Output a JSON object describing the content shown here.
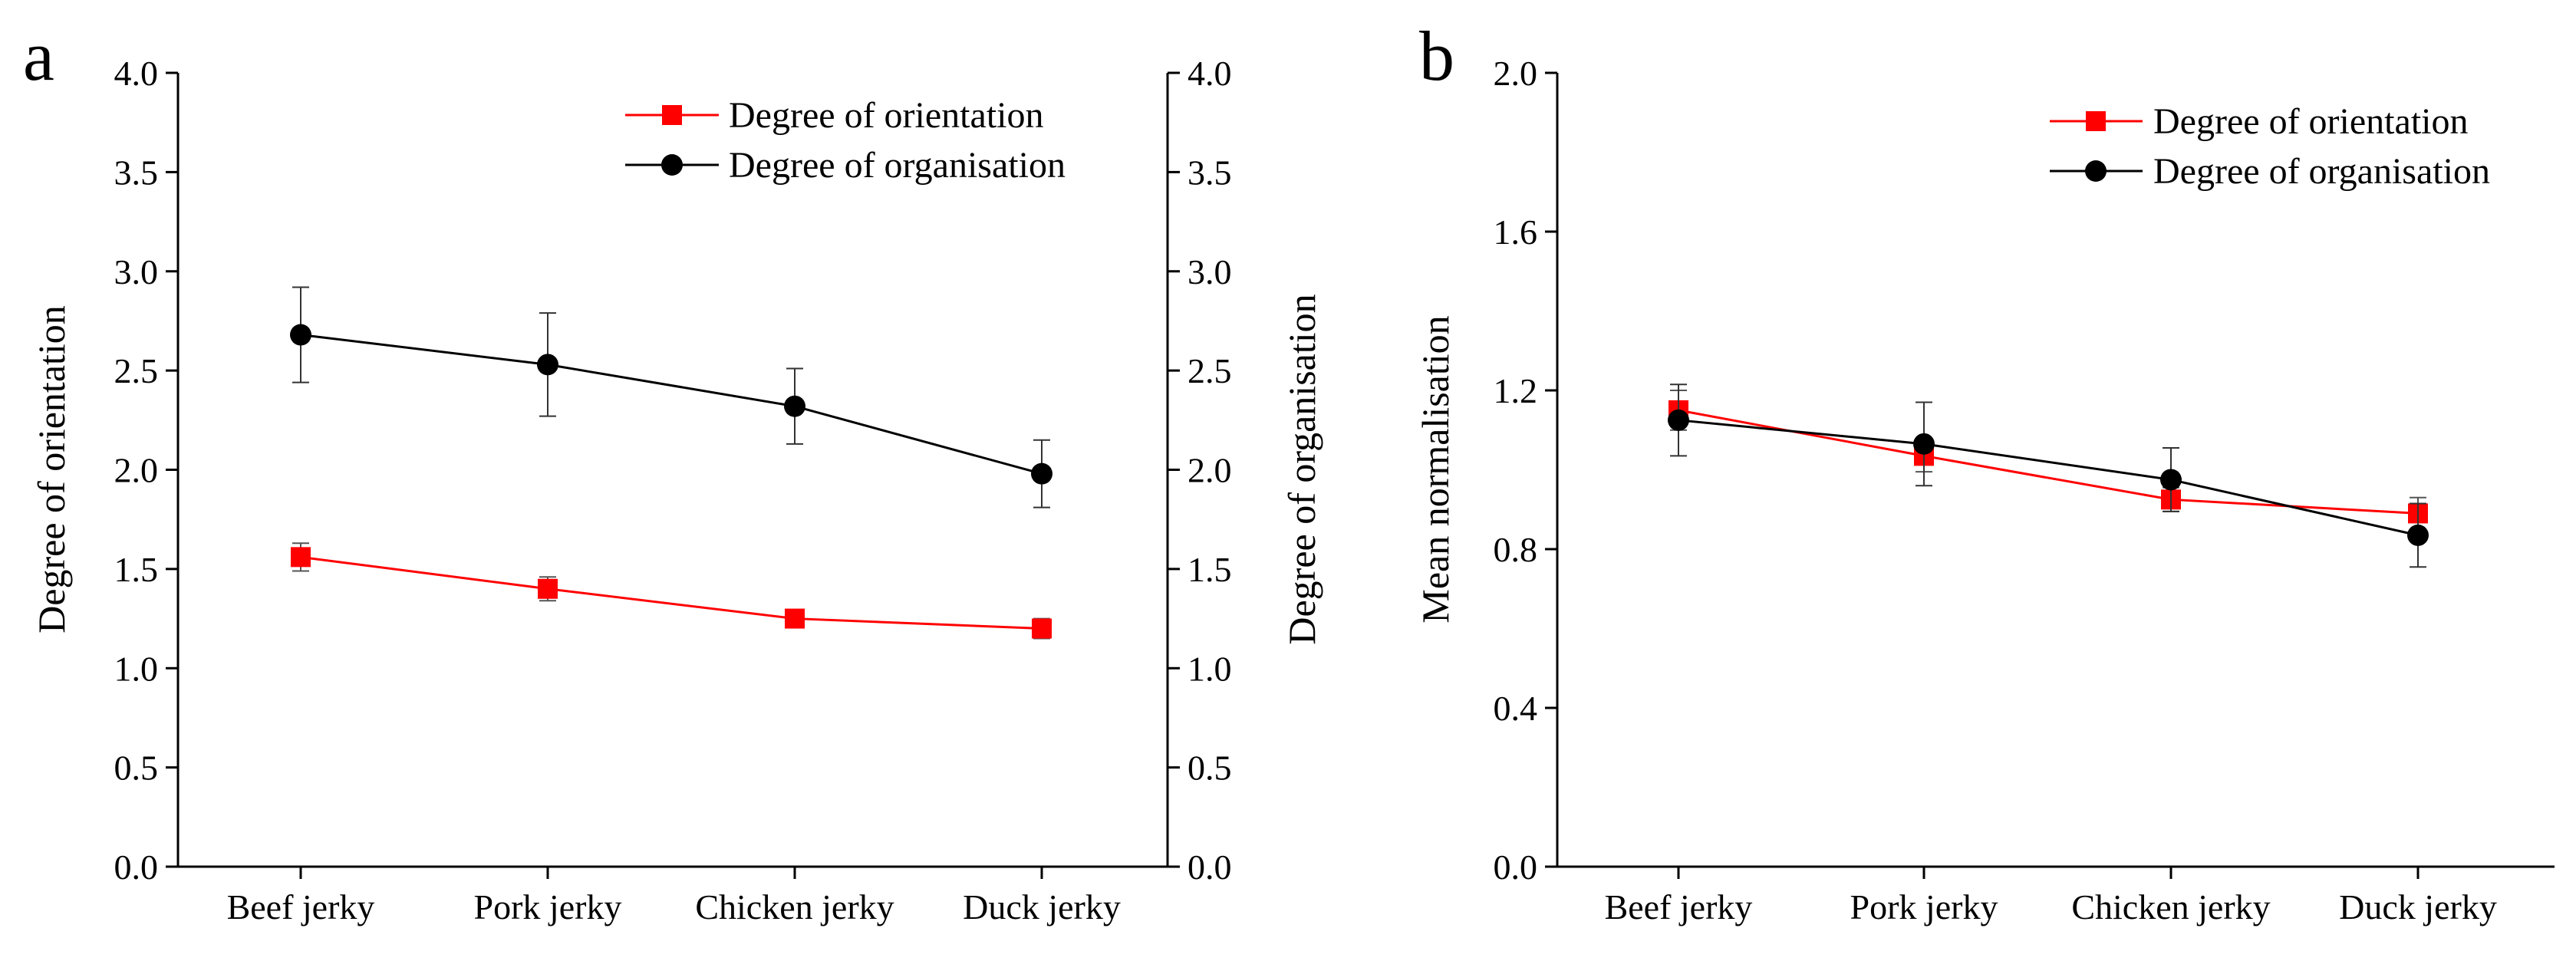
{
  "chart_data": [
    {
      "panel_label": "a",
      "type": "line",
      "categories": [
        "Beef jerky",
        "Pork jerky",
        "Chicken jerky",
        "Duck jerky"
      ],
      "ylabel": "Degree of orientation",
      "y2label": "Degree of organisation",
      "ylim": [
        0.0,
        4.0
      ],
      "y2lim": [
        0.0,
        4.0
      ],
      "yticks": [
        "0.0",
        "0.5",
        "1.0",
        "1.5",
        "2.0",
        "2.5",
        "3.0",
        "3.5",
        "4.0"
      ],
      "y2ticks": [
        "0.0",
        "0.5",
        "1.0",
        "1.5",
        "2.0",
        "2.5",
        "3.0",
        "3.5",
        "4.0"
      ],
      "legend_position": "top-right",
      "series": [
        {
          "name": "Degree of orientation",
          "axis": "left",
          "color": "#ff0000",
          "marker": "square",
          "values": [
            1.56,
            1.4,
            1.25,
            1.2
          ],
          "errors": [
            0.07,
            0.06,
            0.04,
            0.05
          ]
        },
        {
          "name": "Degree of organisation",
          "axis": "right",
          "color": "#000000",
          "marker": "circle",
          "values": [
            2.68,
            2.53,
            2.32,
            1.98
          ],
          "errors": [
            0.24,
            0.26,
            0.19,
            0.17
          ]
        }
      ]
    },
    {
      "panel_label": "b",
      "type": "line",
      "categories": [
        "Beef jerky",
        "Pork jerky",
        "Chicken jerky",
        "Duck jerky"
      ],
      "ylabel": "Mean normalisation",
      "ylim": [
        0.0,
        2.0
      ],
      "yticks": [
        "0.0",
        "0.4",
        "0.8",
        "1.2",
        "1.6",
        "2.0"
      ],
      "legend_position": "top-right",
      "series": [
        {
          "name": "Degree of orientation",
          "axis": "left",
          "color": "#ff0000",
          "marker": "square",
          "values": [
            1.15,
            1.035,
            0.925,
            0.89
          ],
          "errors": [
            0.05,
            0.04,
            0.03,
            0.04
          ]
        },
        {
          "name": "Degree of organisation",
          "axis": "left",
          "color": "#000000",
          "marker": "circle",
          "values": [
            1.125,
            1.065,
            0.975,
            0.835
          ],
          "errors": [
            0.09,
            0.105,
            0.08,
            0.08
          ]
        }
      ]
    }
  ]
}
